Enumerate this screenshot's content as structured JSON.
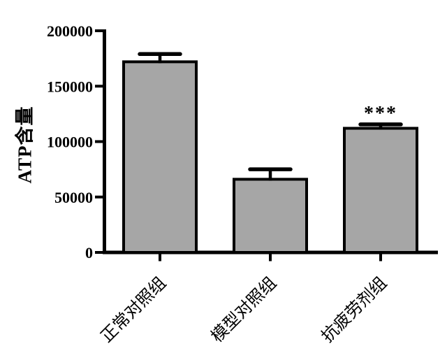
{
  "chart_data": {
    "type": "bar",
    "title": "",
    "xlabel": "",
    "ylabel": "ATP含量",
    "categories": [
      "正常对照组",
      "模型对照组",
      "抗疲劳剂组"
    ],
    "values": [
      172000,
      66000,
      112000
    ],
    "errors": [
      7000,
      9000,
      3500
    ],
    "error_bar_style": "upper-only",
    "significance": [
      "",
      "",
      "***"
    ],
    "ylim": [
      0,
      200000
    ],
    "yticks": [
      0,
      50000,
      100000,
      150000,
      200000
    ],
    "ytick_labels": [
      "0",
      "50000",
      "100000",
      "150000",
      "200000"
    ],
    "grid": false,
    "legend": null,
    "bar_fill": "#a6a6a6",
    "bar_outline": "#000000",
    "axis_color": "#000000",
    "background": "#ffffff"
  }
}
